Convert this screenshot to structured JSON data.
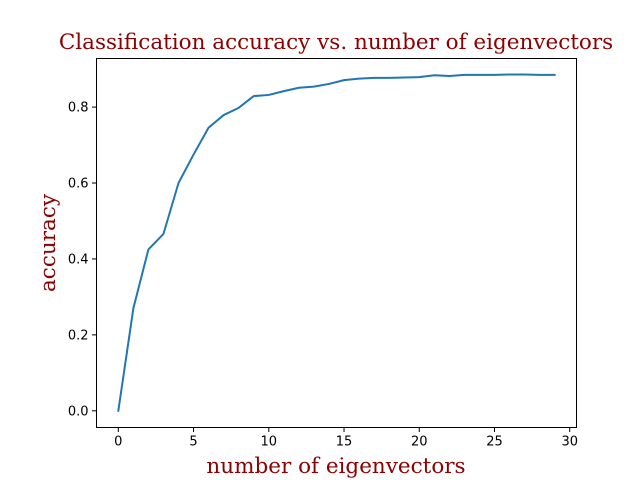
{
  "chart_data": {
    "type": "line",
    "title": "Classification accuracy vs. number of eigenvectors",
    "xlabel": "number of eigenvectors",
    "ylabel": "accuracy",
    "xlim": [
      -1.45,
      30.45
    ],
    "ylim": [
      -0.044,
      0.928
    ],
    "xticks": [
      0,
      5,
      10,
      15,
      20,
      25,
      30
    ],
    "yticks": [
      0.0,
      0.2,
      0.4,
      0.6,
      0.8
    ],
    "xtick_labels": [
      "0",
      "5",
      "10",
      "15",
      "20",
      "25",
      "30"
    ],
    "ytick_labels": [
      "0.0",
      "0.2",
      "0.4",
      "0.6",
      "0.8"
    ],
    "grid": false,
    "series": [
      {
        "color": "#1f77b4",
        "x": [
          0,
          1,
          2,
          3,
          4,
          5,
          6,
          7,
          8,
          9,
          10,
          11,
          12,
          13,
          14,
          15,
          16,
          17,
          18,
          19,
          20,
          21,
          22,
          23,
          24,
          25,
          26,
          27,
          28,
          29
        ],
        "y": [
          0.0,
          0.27,
          0.425,
          0.466,
          0.6,
          0.675,
          0.746,
          0.779,
          0.798,
          0.829,
          0.832,
          0.842,
          0.851,
          0.854,
          0.861,
          0.871,
          0.875,
          0.877,
          0.877,
          0.878,
          0.879,
          0.884,
          0.882,
          0.885,
          0.885,
          0.885,
          0.886,
          0.886,
          0.885,
          0.885
        ]
      }
    ]
  }
}
